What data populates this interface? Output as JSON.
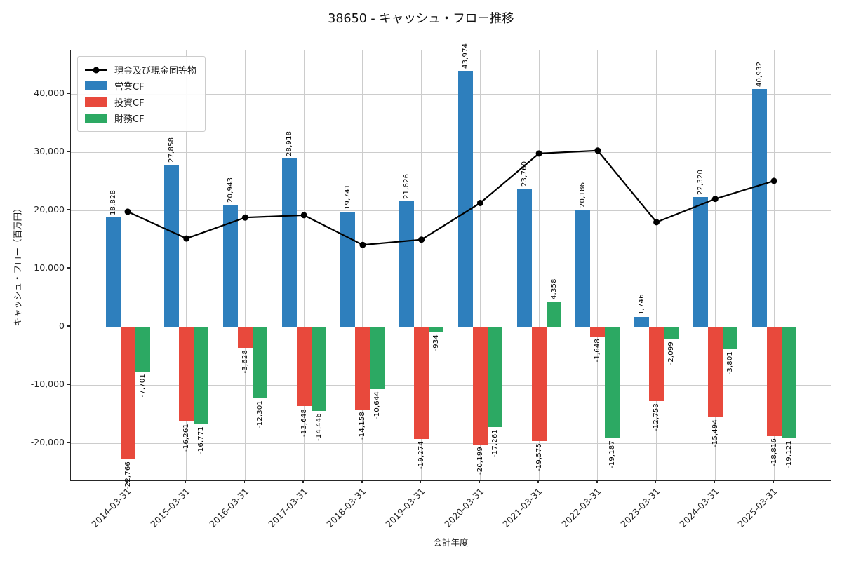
{
  "chart_data": {
    "type": "bar",
    "title": "38650 - キャッシュ・フロー推移",
    "xlabel": "会計年度",
    "ylabel": "キャッシュ・フロー（百万円）",
    "categories": [
      "2014-03-31",
      "2015-03-31",
      "2016-03-31",
      "2017-03-31",
      "2018-03-31",
      "2019-03-31",
      "2020-03-31",
      "2021-03-31",
      "2022-03-31",
      "2023-03-31",
      "2024-03-31",
      "2025-03-31"
    ],
    "series": [
      {
        "key": "operating-cf",
        "name": "営業CF",
        "type": "bar",
        "color": "#2e7fbd",
        "values": [
          18828,
          27858,
          20943,
          28918,
          19741,
          21626,
          43974,
          23760,
          20186,
          1746,
          22320,
          40932
        ]
      },
      {
        "key": "investing-cf",
        "name": "投資CF",
        "type": "bar",
        "color": "#e8493c",
        "values": [
          -22766,
          -16261,
          -3628,
          -13648,
          -14158,
          -19274,
          -20199,
          -19575,
          -1648,
          -12753,
          -15494,
          -18816
        ]
      },
      {
        "key": "financing-cf",
        "name": "財務CF",
        "type": "bar",
        "color": "#2ca963",
        "values": [
          -7701,
          -16771,
          -12301,
          -14446,
          -10644,
          -934,
          -17261,
          4358,
          -19187,
          -2099,
          -3801,
          -19121
        ]
      },
      {
        "key": "cash-and-equivalents",
        "name": "現金及び現金同等物",
        "type": "line",
        "color": "#000000",
        "values": [
          19800,
          15200,
          18800,
          19200,
          14100,
          15000,
          21300,
          29800,
          30300,
          18000,
          22000,
          25100
        ]
      }
    ],
    "ylim": [
      -26600,
      47500
    ],
    "yticks": [
      -20000,
      -10000,
      0,
      10000,
      20000,
      30000,
      40000
    ],
    "grid": true,
    "legend_position": "upper-left",
    "bar_labels": "values shown rotated 90° at bar ends, thousands comma format"
  },
  "legend": {
    "items": [
      {
        "label": "現金及び現金同等物",
        "marker": "line-dot",
        "color": "#000000"
      },
      {
        "label": "営業CF",
        "marker": "swatch",
        "color": "#2e7fbd"
      },
      {
        "label": "投資CF",
        "marker": "swatch",
        "color": "#e8493c"
      },
      {
        "label": "財務CF",
        "marker": "swatch",
        "color": "#2ca963"
      }
    ]
  },
  "colors": {
    "background": "#ffffff",
    "grid": "#cccccc",
    "spine": "#262626",
    "text": "#1a1a1a",
    "line_series": "#000000"
  }
}
